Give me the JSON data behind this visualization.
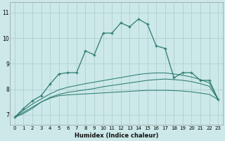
{
  "xlabel": "Humidex (Indice chaleur)",
  "bg_color": "#cce8e8",
  "grid_color": "#aacccc",
  "line_color": "#2e7d6e",
  "x_ticks": [
    0,
    1,
    2,
    3,
    4,
    5,
    6,
    7,
    8,
    9,
    10,
    11,
    12,
    13,
    14,
    15,
    16,
    17,
    18,
    19,
    20,
    21,
    22,
    23
  ],
  "y_ticks": [
    7,
    8,
    9,
    10,
    11
  ],
  "xlim": [
    -0.5,
    23.5
  ],
  "ylim": [
    6.6,
    11.4
  ],
  "line1_x": [
    0,
    1,
    2,
    3,
    4,
    5,
    6,
    7,
    8,
    9,
    10,
    11,
    12,
    13,
    14,
    15,
    16,
    17,
    18,
    19,
    20,
    21,
    22,
    23
  ],
  "line1_y": [
    6.9,
    7.25,
    7.55,
    7.75,
    8.2,
    8.6,
    8.65,
    8.65,
    9.5,
    9.35,
    10.2,
    10.2,
    10.6,
    10.45,
    10.75,
    10.55,
    9.7,
    9.6,
    8.45,
    8.65,
    8.65,
    8.35,
    8.35,
    7.6
  ],
  "line2_x": [
    0,
    1,
    2,
    3,
    4,
    5,
    6,
    7,
    8,
    9,
    10,
    11,
    12,
    13,
    14,
    15,
    16,
    17,
    18,
    19,
    20,
    21,
    22,
    23
  ],
  "line2_y": [
    6.9,
    7.05,
    7.25,
    7.5,
    7.65,
    7.75,
    7.78,
    7.8,
    7.82,
    7.84,
    7.86,
    7.88,
    7.9,
    7.92,
    7.94,
    7.96,
    7.96,
    7.96,
    7.95,
    7.93,
    7.9,
    7.85,
    7.8,
    7.6
  ],
  "line3_x": [
    0,
    1,
    2,
    3,
    4,
    5,
    6,
    7,
    8,
    9,
    10,
    11,
    12,
    13,
    14,
    15,
    16,
    17,
    18,
    19,
    20,
    21,
    22,
    23
  ],
  "line3_y": [
    6.9,
    7.1,
    7.3,
    7.5,
    7.68,
    7.8,
    7.88,
    7.93,
    7.98,
    8.03,
    8.1,
    8.15,
    8.2,
    8.25,
    8.3,
    8.35,
    8.38,
    8.4,
    8.38,
    8.35,
    8.3,
    8.22,
    8.12,
    7.6
  ],
  "line4_x": [
    0,
    1,
    2,
    3,
    4,
    5,
    6,
    7,
    8,
    9,
    10,
    11,
    12,
    13,
    14,
    15,
    16,
    17,
    18,
    19,
    20,
    21,
    22,
    23
  ],
  "line4_y": [
    6.9,
    7.18,
    7.42,
    7.62,
    7.82,
    7.98,
    8.08,
    8.15,
    8.22,
    8.28,
    8.34,
    8.4,
    8.46,
    8.52,
    8.58,
    8.62,
    8.64,
    8.64,
    8.6,
    8.55,
    8.48,
    8.38,
    8.25,
    7.6
  ]
}
